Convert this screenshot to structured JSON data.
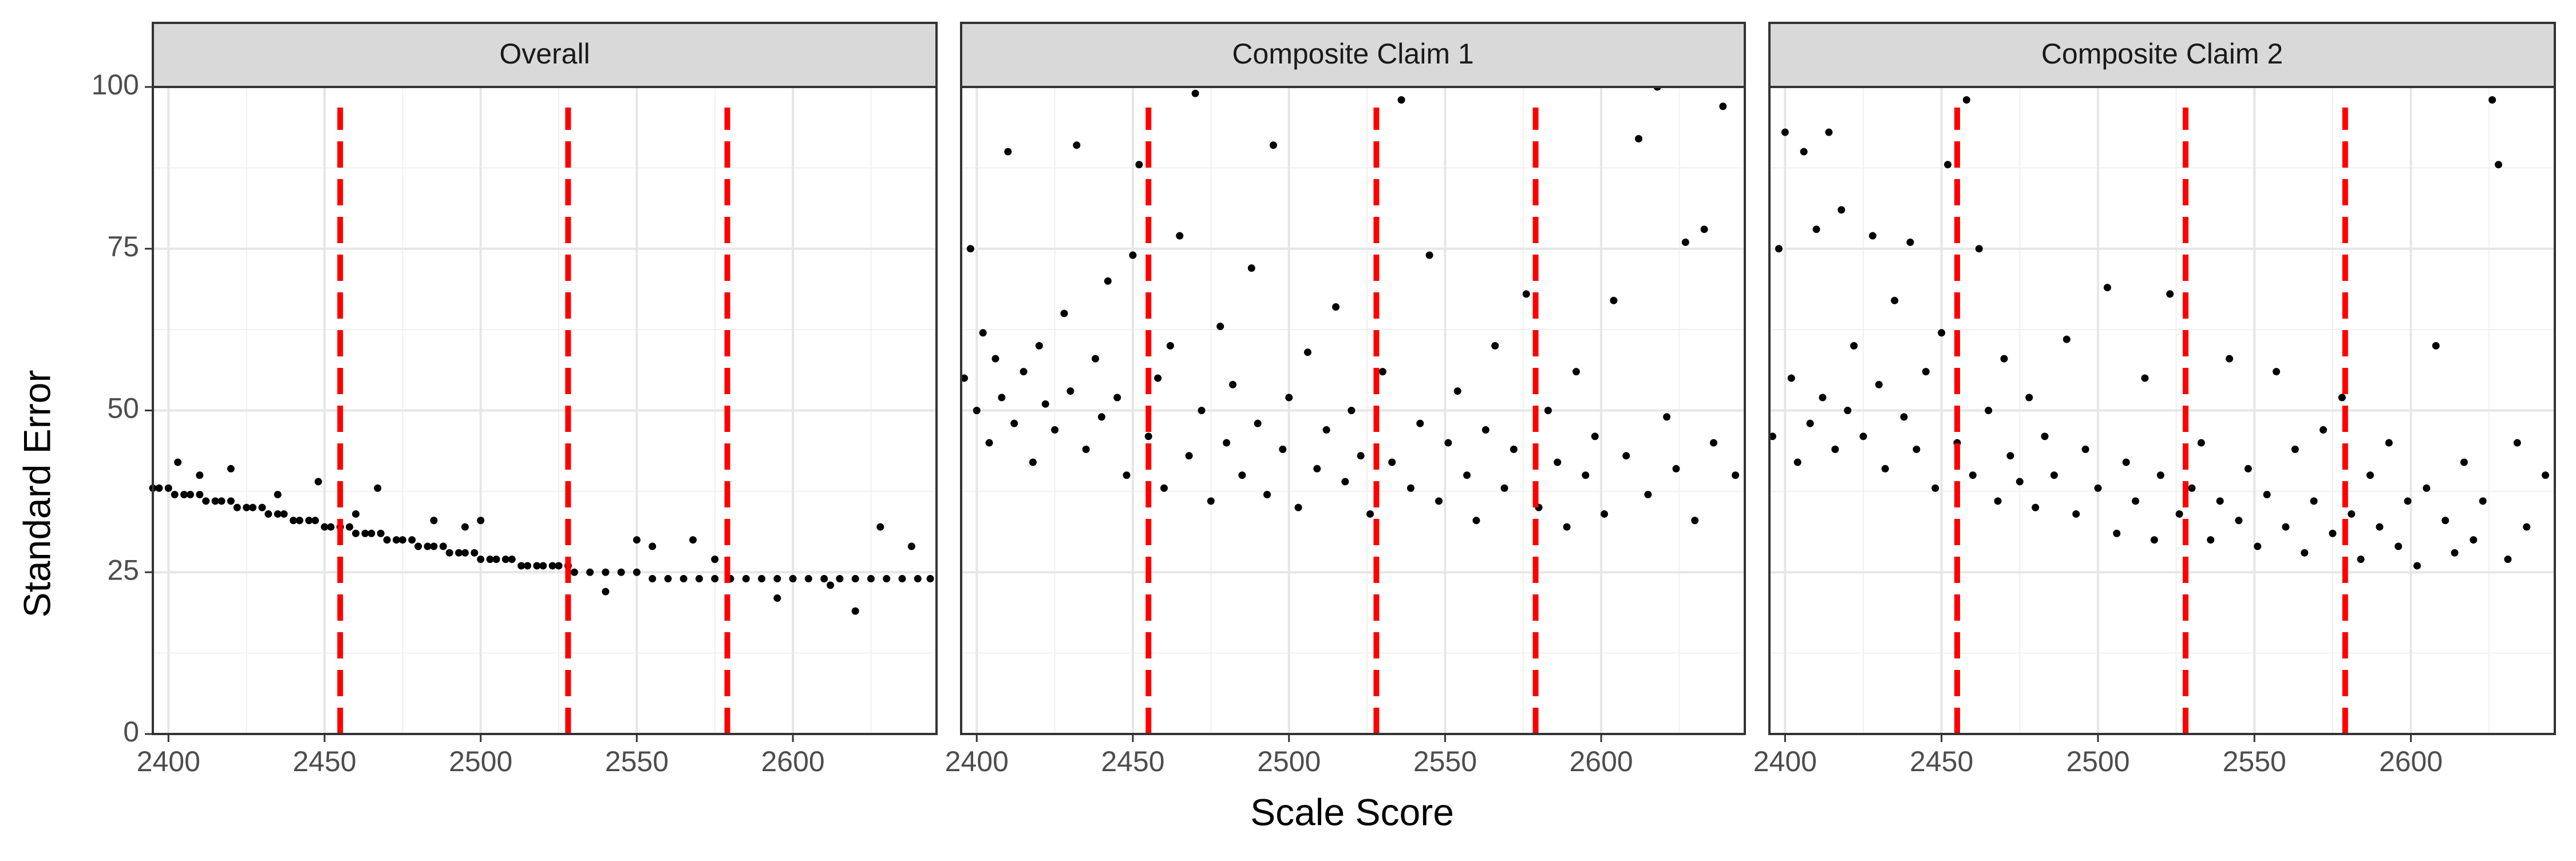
{
  "x_label": "Scale Score",
  "y_label": "Standard Error",
  "chart_data": [
    {
      "type": "scatter",
      "title": "Overall",
      "color": "#000000",
      "xlim": [
        2395,
        2646
      ],
      "ylim": [
        0,
        100
      ],
      "xticks": [
        2400,
        2450,
        2500,
        2550,
        2600
      ],
      "yticks": [
        0,
        25,
        50,
        75,
        100
      ],
      "grid": true,
      "minor_grid": true,
      "vlines": [
        2455,
        2528,
        2579
      ],
      "vline_color": "#ff0000",
      "x": [
        2395,
        2397,
        2400,
        2402,
        2405,
        2407,
        2410,
        2412,
        2415,
        2417,
        2420,
        2422,
        2425,
        2427,
        2430,
        2432,
        2435,
        2437,
        2440,
        2442,
        2445,
        2447,
        2450,
        2452,
        2455,
        2458,
        2460,
        2463,
        2465,
        2468,
        2470,
        2473,
        2475,
        2478,
        2480,
        2483,
        2485,
        2488,
        2490,
        2493,
        2495,
        2498,
        2500,
        2503,
        2505,
        2508,
        2510,
        2513,
        2515,
        2518,
        2520,
        2523,
        2525,
        2528,
        2530,
        2535,
        2540,
        2545,
        2550,
        2555,
        2560,
        2565,
        2570,
        2575,
        2580,
        2585,
        2590,
        2595,
        2600,
        2605,
        2610,
        2615,
        2620,
        2625,
        2630,
        2635,
        2640,
        2644,
        2403,
        2410,
        2420,
        2435,
        2448,
        2467,
        2485,
        2495,
        2500,
        2540,
        2550,
        2555,
        2568,
        2575,
        2595,
        2612,
        2620,
        2628,
        2638,
        2460
      ],
      "values": [
        38,
        38,
        38,
        37,
        37,
        37,
        37,
        36,
        36,
        36,
        36,
        35,
        35,
        35,
        35,
        34,
        34,
        34,
        33,
        33,
        33,
        33,
        32,
        32,
        32,
        32,
        31,
        31,
        31,
        31,
        30,
        30,
        30,
        30,
        29,
        29,
        29,
        29,
        28,
        28,
        28,
        28,
        27,
        27,
        27,
        27,
        27,
        26,
        26,
        26,
        26,
        26,
        26,
        26,
        25,
        25,
        25,
        25,
        25,
        24,
        24,
        24,
        24,
        24,
        24,
        24,
        24,
        24,
        24,
        24,
        24,
        24,
        24,
        24,
        24,
        24,
        24,
        24,
        42,
        40,
        41,
        37,
        39,
        38,
        33,
        32,
        33,
        22,
        30,
        29,
        30,
        27,
        21,
        23,
        19,
        32,
        29,
        34
      ]
    },
    {
      "type": "scatter",
      "title": "Composite Claim 1",
      "color": "#000000",
      "xlim": [
        2395,
        2646
      ],
      "ylim": [
        0,
        100
      ],
      "xticks": [
        2400,
        2450,
        2500,
        2550,
        2600
      ],
      "yticks": [
        0,
        25,
        50,
        75,
        100
      ],
      "grid": true,
      "minor_grid": true,
      "vlines": [
        2455,
        2528,
        2579
      ],
      "vline_color": "#ff0000",
      "x": [
        2396,
        2398,
        2400,
        2402,
        2404,
        2406,
        2408,
        2410,
        2412,
        2415,
        2418,
        2420,
        2422,
        2425,
        2428,
        2430,
        2432,
        2435,
        2438,
        2440,
        2442,
        2445,
        2448,
        2450,
        2452,
        2455,
        2458,
        2460,
        2462,
        2465,
        2468,
        2470,
        2472,
        2475,
        2478,
        2480,
        2482,
        2485,
        2488,
        2490,
        2493,
        2495,
        2498,
        2500,
        2503,
        2506,
        2509,
        2512,
        2515,
        2518,
        2520,
        2523,
        2526,
        2530,
        2533,
        2536,
        2539,
        2542,
        2545,
        2548,
        2551,
        2554,
        2557,
        2560,
        2563,
        2566,
        2569,
        2572,
        2576,
        2580,
        2583,
        2586,
        2589,
        2592,
        2595,
        2598,
        2601,
        2604,
        2608,
        2612,
        2615,
        2618,
        2621,
        2624,
        2627,
        2630,
        2633,
        2636,
        2639,
        2643
      ],
      "values": [
        55,
        75,
        50,
        62,
        45,
        58,
        52,
        90,
        48,
        56,
        42,
        60,
        51,
        47,
        65,
        53,
        91,
        44,
        58,
        49,
        70,
        52,
        40,
        74,
        88,
        46,
        55,
        38,
        60,
        77,
        43,
        99,
        50,
        36,
        63,
        45,
        54,
        40,
        72,
        48,
        37,
        91,
        44,
        52,
        35,
        59,
        41,
        47,
        66,
        39,
        50,
        43,
        34,
        56,
        42,
        98,
        38,
        48,
        74,
        36,
        45,
        53,
        40,
        33,
        47,
        60,
        38,
        44,
        68,
        35,
        50,
        42,
        32,
        56,
        40,
        46,
        34,
        67,
        43,
        92,
        37,
        100,
        49,
        41,
        76,
        33,
        78,
        45,
        97,
        40
      ]
    },
    {
      "type": "scatter",
      "title": "Composite Claim 2",
      "color": "#000000",
      "xlim": [
        2395,
        2646
      ],
      "ylim": [
        0,
        100
      ],
      "xticks": [
        2400,
        2450,
        2500,
        2550,
        2600
      ],
      "yticks": [
        0,
        25,
        50,
        75,
        100
      ],
      "grid": true,
      "minor_grid": true,
      "vlines": [
        2455,
        2528,
        2579
      ],
      "vline_color": "#ff0000",
      "x": [
        2396,
        2398,
        2400,
        2402,
        2404,
        2406,
        2408,
        2410,
        2412,
        2414,
        2416,
        2418,
        2420,
        2422,
        2425,
        2428,
        2430,
        2432,
        2435,
        2438,
        2440,
        2442,
        2445,
        2448,
        2450,
        2452,
        2455,
        2458,
        2460,
        2462,
        2465,
        2468,
        2470,
        2472,
        2475,
        2478,
        2480,
        2483,
        2486,
        2490,
        2493,
        2496,
        2500,
        2503,
        2506,
        2509,
        2512,
        2515,
        2518,
        2520,
        2523,
        2526,
        2530,
        2533,
        2536,
        2539,
        2542,
        2545,
        2548,
        2551,
        2554,
        2557,
        2560,
        2563,
        2566,
        2569,
        2572,
        2575,
        2578,
        2581,
        2584,
        2587,
        2590,
        2593,
        2596,
        2599,
        2602,
        2605,
        2608,
        2611,
        2614,
        2617,
        2620,
        2623,
        2626,
        2628,
        2631,
        2634,
        2637,
        2643
      ],
      "values": [
        46,
        75,
        93,
        55,
        42,
        90,
        48,
        78,
        52,
        93,
        44,
        81,
        50,
        60,
        46,
        77,
        54,
        41,
        67,
        49,
        76,
        44,
        56,
        38,
        62,
        88,
        45,
        98,
        40,
        75,
        50,
        36,
        58,
        43,
        39,
        52,
        35,
        46,
        40,
        61,
        34,
        44,
        38,
        69,
        31,
        42,
        36,
        55,
        30,
        40,
        68,
        34,
        38,
        45,
        30,
        36,
        58,
        33,
        41,
        29,
        37,
        56,
        32,
        44,
        28,
        36,
        47,
        31,
        52,
        34,
        27,
        40,
        32,
        45,
        29,
        36,
        26,
        38,
        60,
        33,
        28,
        42,
        30,
        36,
        98,
        88,
        27,
        45,
        32,
        40
      ]
    }
  ]
}
